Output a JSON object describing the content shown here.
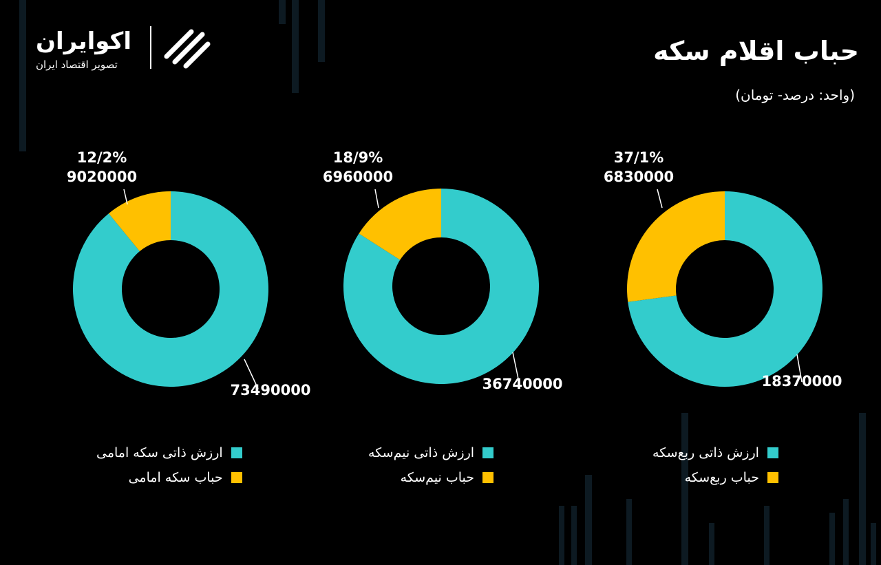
{
  "header": {
    "title": "حباب اقلام سکه",
    "subtitle": "(واحد: درصد- تومان)"
  },
  "logo": {
    "name": "اکوایران",
    "tagline": "تصویر اقتصاد ایران"
  },
  "colors": {
    "intrinsic": "#33CCCC",
    "bubble": "#FFC000",
    "background": "#000000"
  },
  "chart_data": [
    {
      "type": "pie",
      "slices": [
        {
          "name": "ارزش ذاتی سکه امامی",
          "value": 73490000,
          "color": "#33CCCC",
          "label": "73490000"
        },
        {
          "name": "حباب سکه امامی",
          "value": 9020000,
          "color": "#FFC000",
          "label": "9020000",
          "percent_label": "12/2%"
        }
      ],
      "legend": [
        "ارزش ذاتی سکه امامی",
        "حباب سکه امامی"
      ]
    },
    {
      "type": "pie",
      "slices": [
        {
          "name": "ارزش ذاتی نیم‌سکه",
          "value": 36740000,
          "color": "#33CCCC",
          "label": "36740000"
        },
        {
          "name": "حباب نیم‌سکه",
          "value": 6960000,
          "color": "#FFC000",
          "label": "6960000",
          "percent_label": "18/9%"
        }
      ],
      "legend": [
        "ارزش ذاتی نیم‌سکه",
        "حباب نیم‌سکه"
      ]
    },
    {
      "type": "pie",
      "slices": [
        {
          "name": "ارزش ذاتی ربع‌سکه",
          "value": 18370000,
          "color": "#33CCCC",
          "label": "18370000"
        },
        {
          "name": "حباب ربع‌سکه",
          "value": 6830000,
          "color": "#FFC000",
          "label": "6830000",
          "percent_label": "37/1%"
        }
      ],
      "legend": [
        "ارزش ذاتی ربع‌سکه",
        "حباب ربع‌سکه"
      ]
    }
  ]
}
